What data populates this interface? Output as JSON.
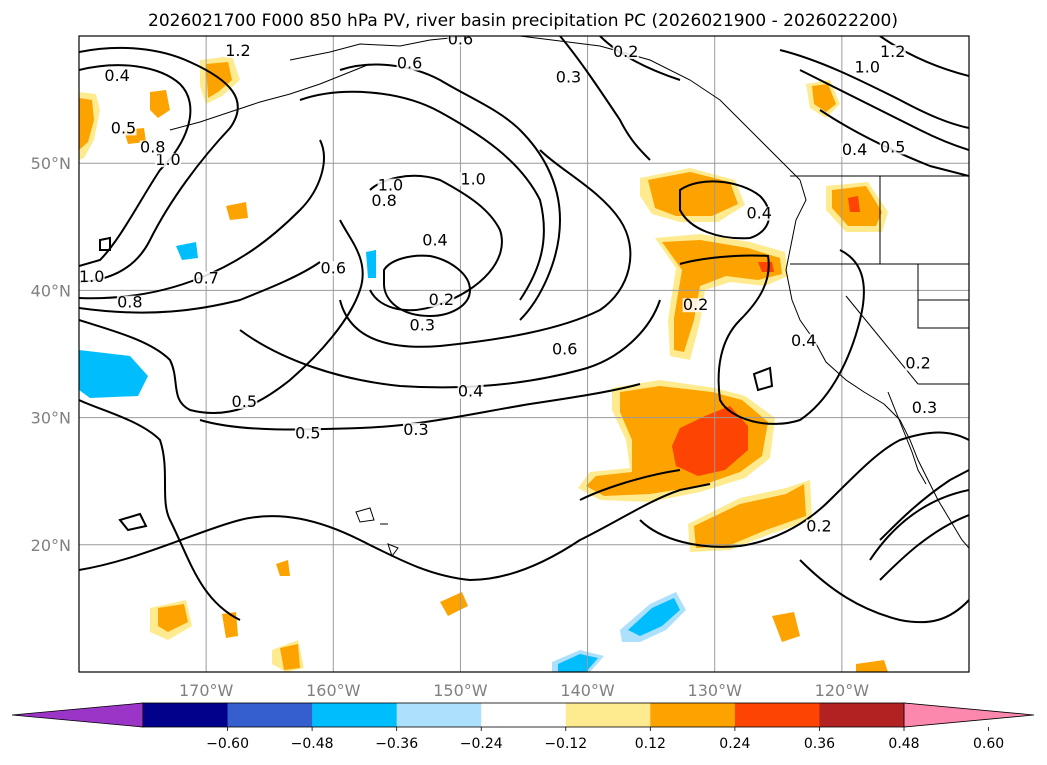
{
  "title": "2026021700 F000 850 hPa PV, river basin precipitation PC (2026021900 - 2026022200)",
  "map": {
    "lon_range": [
      -180,
      -110
    ],
    "lat_range": [
      10,
      60
    ],
    "lon_ticks": [
      {
        "value": -170,
        "label": "170°W"
      },
      {
        "value": -160,
        "label": "160°W"
      },
      {
        "value": -150,
        "label": "150°W"
      },
      {
        "value": -140,
        "label": "140°W"
      },
      {
        "value": -130,
        "label": "130°W"
      },
      {
        "value": -120,
        "label": "120°W"
      }
    ],
    "lat_ticks": [
      {
        "value": 20,
        "label": "20°N"
      },
      {
        "value": 30,
        "label": "30°N"
      },
      {
        "value": 40,
        "label": "40°N"
      },
      {
        "value": 50,
        "label": "50°N"
      }
    ],
    "grid": true,
    "contour_labels": [
      {
        "text": "0.6",
        "lon": -160,
        "lat": 41.5
      },
      {
        "text": "0.8",
        "lon": -176,
        "lat": 38.8
      },
      {
        "text": "1.0",
        "lon": -179,
        "lat": 40.8
      },
      {
        "text": "0.5",
        "lon": -167,
        "lat": 31
      },
      {
        "text": "0.4",
        "lon": -152,
        "lat": 43.7
      },
      {
        "text": "0.2",
        "lon": -151.5,
        "lat": 39
      },
      {
        "text": "0.3",
        "lon": -153,
        "lat": 37
      },
      {
        "text": "1.0",
        "lon": -155.5,
        "lat": 48
      },
      {
        "text": "0.8",
        "lon": -156,
        "lat": 46.8
      },
      {
        "text": "1.0",
        "lon": -149,
        "lat": 48.5
      },
      {
        "text": "0.6",
        "lon": -154,
        "lat": 57.6
      },
      {
        "text": "0.6",
        "lon": -150,
        "lat": 59.5
      },
      {
        "text": "0.3",
        "lon": -141.5,
        "lat": 56.5
      },
      {
        "text": "0.2",
        "lon": -137,
        "lat": 58.5
      },
      {
        "text": "0.6",
        "lon": -141.8,
        "lat": 35.1
      },
      {
        "text": "0.4",
        "lon": -149.2,
        "lat": 31.8
      },
      {
        "text": "0.3",
        "lon": -153.5,
        "lat": 28.8
      },
      {
        "text": "0.2",
        "lon": -131.5,
        "lat": 38.6
      },
      {
        "text": "0.4",
        "lon": -126.5,
        "lat": 45.8
      },
      {
        "text": "0.4",
        "lon": -123,
        "lat": 35.8
      },
      {
        "text": "0.2",
        "lon": -121.8,
        "lat": 21.2
      },
      {
        "text": "1.0",
        "lon": -118,
        "lat": 57.3
      },
      {
        "text": "0.4",
        "lon": -119,
        "lat": 50.8
      },
      {
        "text": "0.5",
        "lon": -116,
        "lat": 51
      },
      {
        "text": "1.2",
        "lon": -116,
        "lat": 58.5
      },
      {
        "text": "1.2",
        "lon": -167.5,
        "lat": 58.6
      },
      {
        "text": "0.4",
        "lon": -177,
        "lat": 56.6
      },
      {
        "text": "0.7",
        "lon": -170,
        "lat": 40.7
      },
      {
        "text": "0.2",
        "lon": -114,
        "lat": 34
      },
      {
        "text": "0.3",
        "lon": -113.5,
        "lat": 30.5
      },
      {
        "text": "0.5",
        "lon": -176.5,
        "lat": 52.5
      },
      {
        "text": "1.0",
        "lon": -173,
        "lat": 50
      },
      {
        "text": "0.8",
        "lon": -174.2,
        "lat": 51
      },
      {
        "text": "0.5",
        "lon": -162,
        "lat": 28.5
      }
    ]
  },
  "colorbar": {
    "colors": [
      "#9a35c7",
      "#01018c",
      "#355fcf",
      "#00bdfd",
      "#ade0fc",
      "#ffffff",
      "#feeb8f",
      "#fca300",
      "#fd4402",
      "#b22222",
      "#fd88ad"
    ],
    "tick_labels": [
      "−0.60",
      "−0.48",
      "−0.36",
      "−0.24",
      "−0.12",
      "0.12",
      "0.24",
      "0.36",
      "0.48",
      "0.60"
    ],
    "extend": "both"
  }
}
